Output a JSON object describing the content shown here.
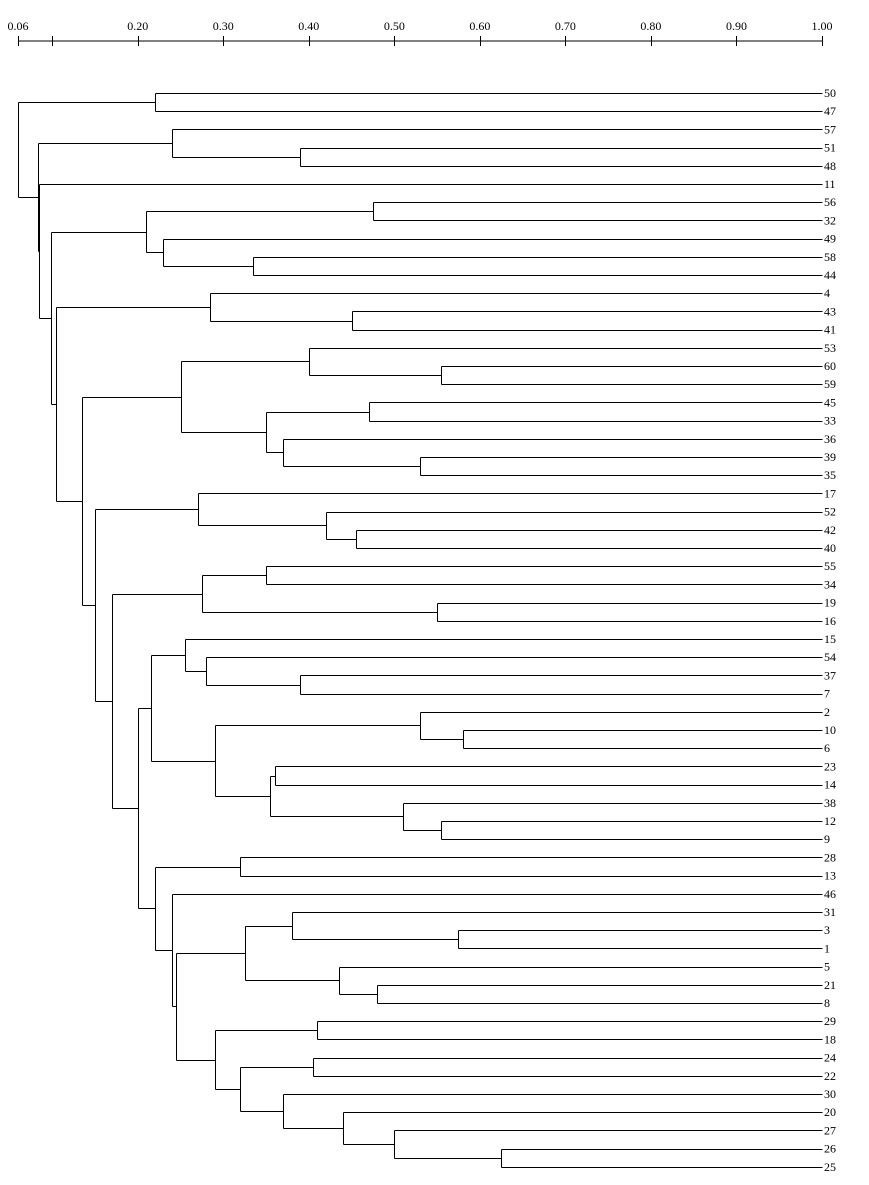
{
  "scale": {
    "tick_labels": [
      "0.06",
      "0.20",
      "0.30",
      "0.40",
      "0.50",
      "0.60",
      "0.70",
      "0.80",
      "0.90",
      "1.00"
    ],
    "tick_values": [
      0.06,
      0.1,
      0.2,
      0.3,
      0.4,
      0.5,
      0.6,
      0.7,
      0.8,
      0.9,
      1.0
    ],
    "labeled_ticks": [
      0.06,
      0.2,
      0.3,
      0.4,
      0.5,
      0.6,
      0.7,
      0.8,
      0.9,
      1.0
    ]
  },
  "leaves": [
    "50",
    "47",
    "57",
    "51",
    "48",
    "11",
    "56",
    "32",
    "49",
    "58",
    "44",
    "4",
    "43",
    "41",
    "53",
    "60",
    "59",
    "45",
    "33",
    "36",
    "39",
    "35",
    "17",
    "52",
    "42",
    "40",
    "55",
    "34",
    "19",
    "16",
    "15",
    "54",
    "37",
    "7",
    "2",
    "10",
    "6",
    "23",
    "14",
    "38",
    "12",
    "9",
    "28",
    "13",
    "46",
    "31",
    "3",
    "1",
    "5",
    "21",
    "8",
    "29",
    "18",
    "24",
    "22",
    "30",
    "20",
    "27",
    "26",
    "25"
  ],
  "tree": {
    "h": 0.06,
    "c": [
      {
        "h": 0.22,
        "c": [
          "50",
          "47"
        ]
      },
      {
        "h": 0.083,
        "c": [
          {
            "h": 0.24,
            "c": [
              "57",
              {
                "h": 0.39,
                "c": [
                  "51",
                  "48"
                ]
              }
            ]
          },
          {
            "h": 0.085,
            "c": [
              "11",
              {
                "h": 0.098,
                "c": [
                  {
                    "h": 0.21,
                    "c": [
                      {
                        "h": 0.475,
                        "c": [
                          "56",
                          "32"
                        ]
                      },
                      {
                        "h": 0.23,
                        "c": [
                          "49",
                          {
                            "h": 0.335,
                            "c": [
                              "58",
                              "44"
                            ]
                          }
                        ]
                      }
                    ]
                  },
                  {
                    "h": 0.104,
                    "c": [
                      {
                        "h": 0.285,
                        "c": [
                          "4",
                          {
                            "h": 0.45,
                            "c": [
                              "43",
                              "41"
                            ]
                          }
                        ]
                      },
                      {
                        "h": 0.135,
                        "c": [
                          {
                            "h": 0.25,
                            "c": [
                              {
                                "h": 0.4,
                                "c": [
                                  "53",
                                  {
                                    "h": 0.555,
                                    "c": [
                                      "60",
                                      "59"
                                    ]
                                  }
                                ]
                              },
                              {
                                "h": 0.35,
                                "c": [
                                  {
                                    "h": 0.47,
                                    "c": [
                                      "45",
                                      "33"
                                    ]
                                  },
                                  {
                                    "h": 0.37,
                                    "c": [
                                      "36",
                                      {
                                        "h": 0.53,
                                        "c": [
                                          "39",
                                          "35"
                                        ]
                                      }
                                    ]
                                  }
                                ]
                              }
                            ]
                          },
                          {
                            "h": 0.15,
                            "c": [
                              {
                                "h": 0.27,
                                "c": [
                                  "17",
                                  {
                                    "h": 0.42,
                                    "c": [
                                      "52",
                                      {
                                        "h": 0.455,
                                        "c": [
                                          "42",
                                          "40"
                                        ]
                                      }
                                    ]
                                  }
                                ]
                              },
                              {
                                "h": 0.17,
                                "c": [
                                  {
                                    "h": 0.275,
                                    "c": [
                                      {
                                        "h": 0.35,
                                        "c": [
                                          "55",
                                          "34"
                                        ]
                                      },
                                      {
                                        "h": 0.55,
                                        "c": [
                                          "19",
                                          "16"
                                        ]
                                      }
                                    ]
                                  },
                                  {
                                    "h": 0.2,
                                    "c": [
                                      {
                                        "h": 0.215,
                                        "c": [
                                          {
                                            "h": 0.255,
                                            "c": [
                                              "15",
                                              {
                                                "h": 0.28,
                                                "c": [
                                                  "54",
                                                  {
                                                    "h": 0.39,
                                                    "c": [
                                                      "37",
                                                      "7"
                                                    ]
                                                  }
                                                ]
                                              }
                                            ]
                                          },
                                          {
                                            "h": 0.29,
                                            "c": [
                                              {
                                                "h": 0.53,
                                                "c": [
                                                  "2",
                                                  {
                                                    "h": 0.58,
                                                    "c": [
                                                      "10",
                                                      "6"
                                                    ]
                                                  }
                                                ]
                                              },
                                              {
                                                "h": 0.355,
                                                "c": [
                                                  {
                                                    "h": 0.36,
                                                    "c": [
                                                      "23",
                                                      "14"
                                                    ]
                                                  },
                                                  {
                                                    "h": 0.51,
                                                    "c": [
                                                      "38",
                                                      {
                                                        "h": 0.555,
                                                        "c": [
                                                          "12",
                                                          "9"
                                                        ]
                                                      }
                                                    ]
                                                  }
                                                ]
                                              }
                                            ]
                                          }
                                        ]
                                      },
                                      {
                                        "h": 0.22,
                                        "c": [
                                          {
                                            "h": 0.32,
                                            "c": [
                                              "28",
                                              "13"
                                            ]
                                          },
                                          {
                                            "h": 0.24,
                                            "c": [
                                              "46",
                                              {
                                                "h": 0.245,
                                                "c": [
                                                  {
                                                    "h": 0.325,
                                                    "c": [
                                                      {
                                                        "h": 0.38,
                                                        "c": [
                                                          "31",
                                                          {
                                                            "h": 0.575,
                                                            "c": [
                                                              "3",
                                                              "1"
                                                            ]
                                                          }
                                                        ]
                                                      },
                                                      {
                                                        "h": 0.435,
                                                        "c": [
                                                          "5",
                                                          {
                                                            "h": 0.48,
                                                            "c": [
                                                              "21",
                                                              "8"
                                                            ]
                                                          }
                                                        ]
                                                      }
                                                    ]
                                                  },
                                                  {
                                                    "h": 0.29,
                                                    "c": [
                                                      {
                                                        "h": 0.41,
                                                        "c": [
                                                          "29",
                                                          "18"
                                                        ]
                                                      },
                                                      {
                                                        "h": 0.32,
                                                        "c": [
                                                          {
                                                            "h": 0.405,
                                                            "c": [
                                                              "24",
                                                              "22"
                                                            ]
                                                          },
                                                          {
                                                            "h": 0.37,
                                                            "c": [
                                                              "30",
                                                              {
                                                                "h": 0.44,
                                                                "c": [
                                                                  "20",
                                                                  {
                                                                    "h": 0.5,
                                                                    "c": [
                                                                      "27",
                                                                      {
                                                                        "h": 0.625,
                                                                        "c": [
                                                                          "26",
                                                                          "25"
                                                                        ]
                                                                      }
                                                                    ]
                                                                  }
                                                                ]
                                                              }
                                                            ]
                                                          }
                                                        ]
                                                      }
                                                    ]
                                                  }
                                                ]
                                              }
                                            ]
                                          }
                                        ]
                                      }
                                    ]
                                  }
                                ]
                              }
                            ]
                          }
                        ]
                      }
                    ]
                  }
                ]
              }
            ]
          }
        ]
      }
    ]
  }
}
